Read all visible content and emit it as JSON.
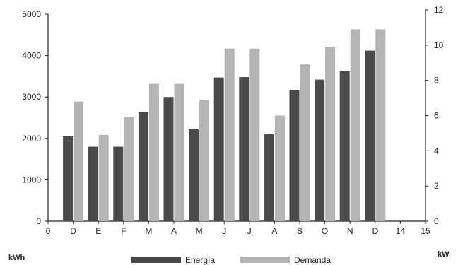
{
  "chart_data": {
    "type": "bar",
    "title": "",
    "categories": [
      "D",
      "E",
      "F",
      "M",
      "A",
      "M",
      "J",
      "J",
      "A",
      "S",
      "O",
      "N",
      "D"
    ],
    "x_tick_labels": [
      "0",
      "D",
      "E",
      "F",
      "M",
      "A",
      "M",
      "J",
      "J",
      "A",
      "S",
      "O",
      "N",
      "D",
      "14",
      "15"
    ],
    "series": [
      {
        "name": "Energía",
        "axis": "left",
        "color": "#4a4a4a",
        "values": [
          2050,
          1800,
          1800,
          2630,
          3000,
          2220,
          3470,
          3480,
          2100,
          3170,
          3420,
          3620,
          4120
        ]
      },
      {
        "name": "Demanda",
        "axis": "right",
        "color": "#b4b4b4",
        "values": [
          6.8,
          4.9,
          5.9,
          7.8,
          7.8,
          6.9,
          9.8,
          9.8,
          6.0,
          8.9,
          9.9,
          10.9,
          10.9
        ]
      }
    ],
    "y_left": {
      "label": "kWh",
      "ylim": [
        0,
        5000
      ],
      "ticks": [
        0,
        1000,
        2000,
        3000,
        4000,
        5000
      ]
    },
    "y_right": {
      "label": "kW",
      "ylim": [
        0,
        12
      ],
      "ticks": [
        0,
        2,
        4,
        6,
        8,
        10,
        12
      ]
    },
    "legend_labels": [
      "Energía",
      "Demanda"
    ],
    "legend_position": "bottom",
    "grid": false
  }
}
